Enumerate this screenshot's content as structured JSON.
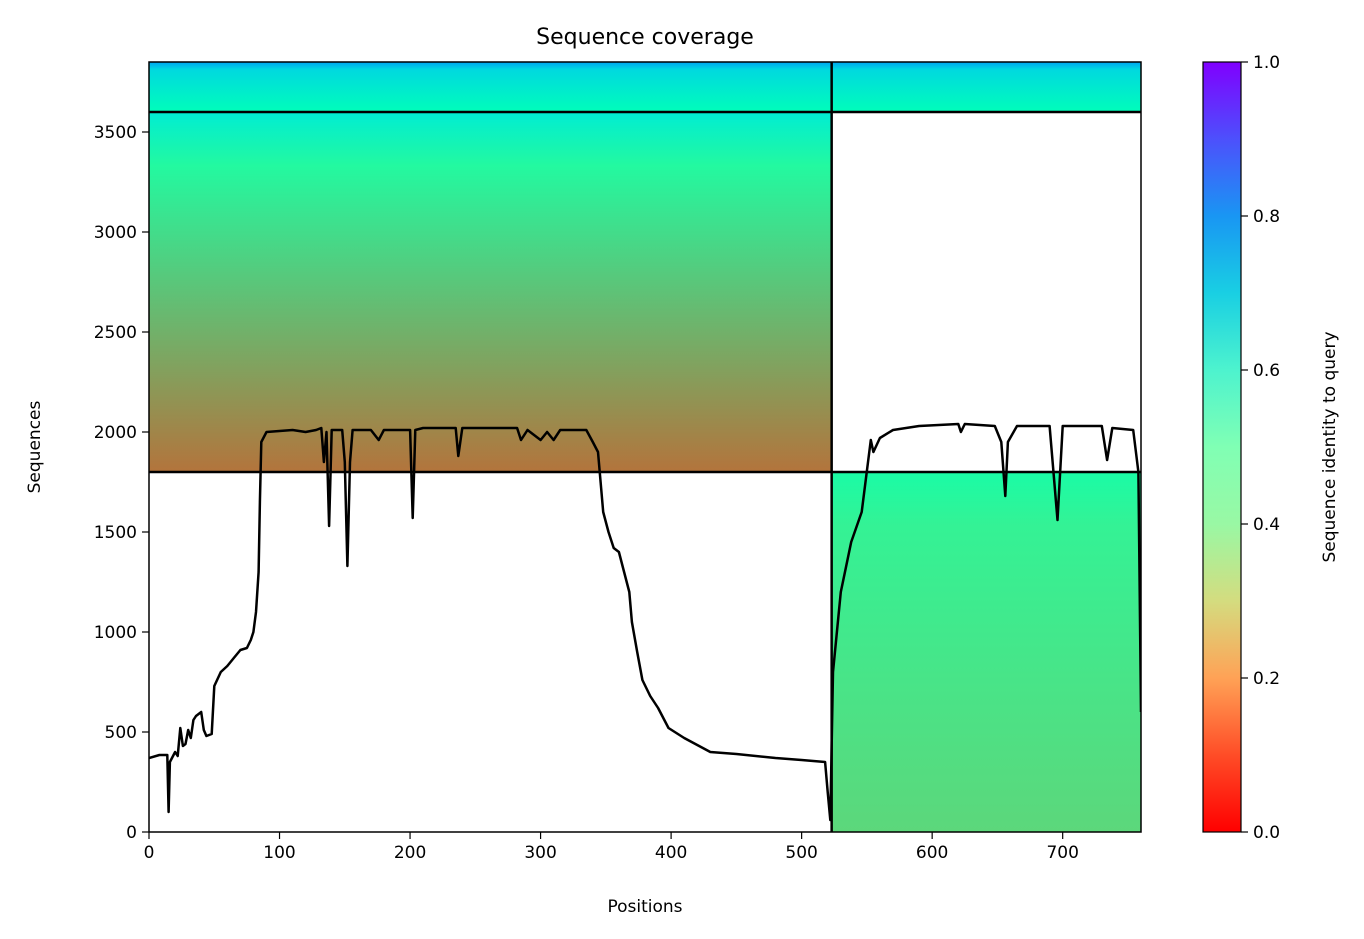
{
  "chart_data": {
    "type": "heatmap",
    "title": "Sequence coverage",
    "xlabel": "Positions",
    "ylabel": "Sequences",
    "xlim": [
      0,
      760
    ],
    "ylim": [
      0,
      3850
    ],
    "xticks": [
      0,
      100,
      200,
      300,
      400,
      500,
      600,
      700
    ],
    "yticks": [
      0,
      500,
      1000,
      1500,
      2000,
      2500,
      3000,
      3500
    ],
    "grid": false,
    "colorbar": {
      "label": "Sequence identity to query",
      "range": [
        0.0,
        1.0
      ],
      "ticks": [
        "0.0",
        "0.2",
        "0.4",
        "0.6",
        "0.8",
        "1.0"
      ],
      "colormap": "rainbow_r"
    },
    "chain_break_x": 523,
    "block_separators_y": [
      1800,
      3600
    ],
    "blocks": [
      {
        "x": [
          523,
          760
        ],
        "y": [
          0,
          1800
        ],
        "identity": 0.32,
        "identity_top": 0.45
      },
      {
        "x": [
          0,
          523
        ],
        "y": [
          1800,
          3600
        ],
        "identity": 0.15,
        "identity_top": 0.62
      },
      {
        "x": [
          0,
          760
        ],
        "y": [
          3600,
          3850
        ],
        "identity": 0.52,
        "identity_top": 0.78
      }
    ],
    "coverage_line": {
      "name": "coverage",
      "color": "#000000",
      "points": [
        [
          0,
          370
        ],
        [
          8,
          385
        ],
        [
          14,
          385
        ],
        [
          15,
          100
        ],
        [
          16,
          350
        ],
        [
          20,
          400
        ],
        [
          22,
          380
        ],
        [
          24,
          520
        ],
        [
          26,
          430
        ],
        [
          28,
          440
        ],
        [
          30,
          510
        ],
        [
          32,
          470
        ],
        [
          34,
          560
        ],
        [
          36,
          580
        ],
        [
          40,
          600
        ],
        [
          42,
          510
        ],
        [
          44,
          480
        ],
        [
          48,
          490
        ],
        [
          50,
          730
        ],
        [
          55,
          800
        ],
        [
          60,
          830
        ],
        [
          65,
          870
        ],
        [
          70,
          910
        ],
        [
          75,
          920
        ],
        [
          78,
          960
        ],
        [
          80,
          1000
        ],
        [
          82,
          1100
        ],
        [
          84,
          1300
        ],
        [
          85,
          1650
        ],
        [
          86,
          1950
        ],
        [
          90,
          2000
        ],
        [
          100,
          2005
        ],
        [
          110,
          2010
        ],
        [
          120,
          2000
        ],
        [
          128,
          2010
        ],
        [
          132,
          2020
        ],
        [
          134,
          1850
        ],
        [
          136,
          2000
        ],
        [
          138,
          1530
        ],
        [
          140,
          2010
        ],
        [
          148,
          2010
        ],
        [
          150,
          1850
        ],
        [
          152,
          1330
        ],
        [
          154,
          1850
        ],
        [
          156,
          2010
        ],
        [
          170,
          2010
        ],
        [
          176,
          1960
        ],
        [
          180,
          2010
        ],
        [
          195,
          2010
        ],
        [
          200,
          2010
        ],
        [
          202,
          1570
        ],
        [
          204,
          2010
        ],
        [
          210,
          2020
        ],
        [
          235,
          2020
        ],
        [
          237,
          1880
        ],
        [
          240,
          2020
        ],
        [
          282,
          2020
        ],
        [
          285,
          1960
        ],
        [
          290,
          2010
        ],
        [
          300,
          1960
        ],
        [
          305,
          2000
        ],
        [
          310,
          1960
        ],
        [
          315,
          2010
        ],
        [
          335,
          2010
        ],
        [
          340,
          1950
        ],
        [
          344,
          1900
        ],
        [
          348,
          1600
        ],
        [
          352,
          1500
        ],
        [
          356,
          1420
        ],
        [
          360,
          1400
        ],
        [
          364,
          1300
        ],
        [
          368,
          1200
        ],
        [
          370,
          1050
        ],
        [
          374,
          900
        ],
        [
          378,
          760
        ],
        [
          384,
          680
        ],
        [
          390,
          620
        ],
        [
          398,
          520
        ],
        [
          410,
          470
        ],
        [
          430,
          400
        ],
        [
          450,
          390
        ],
        [
          480,
          370
        ],
        [
          500,
          360
        ],
        [
          518,
          350
        ],
        [
          520,
          200
        ],
        [
          522,
          60
        ],
        [
          524,
          800
        ],
        [
          530,
          1200
        ],
        [
          538,
          1450
        ],
        [
          546,
          1600
        ],
        [
          553,
          1960
        ],
        [
          555,
          1900
        ],
        [
          560,
          1970
        ],
        [
          570,
          2010
        ],
        [
          590,
          2030
        ],
        [
          620,
          2040
        ],
        [
          622,
          2000
        ],
        [
          625,
          2040
        ],
        [
          648,
          2030
        ],
        [
          653,
          1950
        ],
        [
          656,
          1680
        ],
        [
          658,
          1950
        ],
        [
          665,
          2030
        ],
        [
          690,
          2030
        ],
        [
          696,
          1560
        ],
        [
          700,
          2030
        ],
        [
          730,
          2030
        ],
        [
          734,
          1860
        ],
        [
          738,
          2020
        ],
        [
          754,
          2010
        ],
        [
          758,
          1800
        ],
        [
          760,
          600
        ]
      ]
    }
  }
}
